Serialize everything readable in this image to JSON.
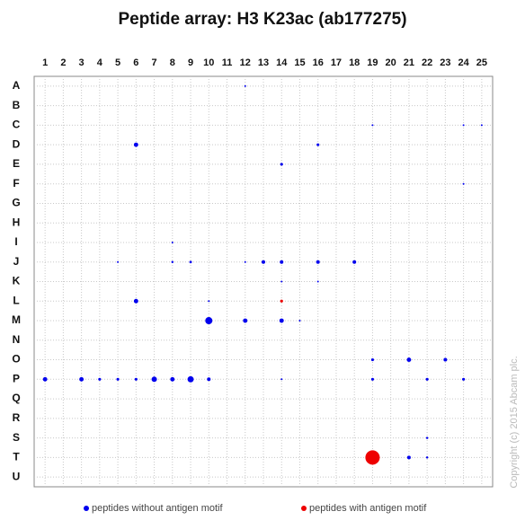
{
  "chart_data": {
    "type": "bubble",
    "title": "Peptide array:  H3 K23ac (ab177275)",
    "xlim": [
      0.4,
      25.6
    ],
    "xticks": [
      1,
      2,
      3,
      4,
      5,
      6,
      7,
      8,
      9,
      10,
      11,
      12,
      13,
      14,
      15,
      16,
      17,
      18,
      19,
      20,
      21,
      22,
      23,
      24,
      25
    ],
    "y_categories": [
      "A",
      "B",
      "C",
      "D",
      "E",
      "F",
      "G",
      "H",
      "I",
      "J",
      "K",
      "L",
      "M",
      "N",
      "O",
      "P",
      "Q",
      "R",
      "S",
      "T",
      "U"
    ],
    "grid": true,
    "series": [
      {
        "name": "peptides without antigen motif",
        "color": "#0000ee",
        "x": [
          12,
          19,
          24,
          25,
          6,
          16,
          14,
          24,
          8,
          5,
          8,
          9,
          12,
          13,
          14,
          16,
          18,
          14,
          16,
          6,
          10,
          10,
          12,
          14,
          15,
          19,
          21,
          23,
          1,
          3,
          4,
          5,
          6,
          7,
          8,
          9,
          10,
          14,
          19,
          22,
          24,
          22,
          21,
          22
        ],
        "y": [
          "A",
          "C",
          "C",
          "C",
          "D",
          "D",
          "E",
          "F",
          "I",
          "J",
          "J",
          "J",
          "J",
          "J",
          "J",
          "J",
          "J",
          "K",
          "K",
          "L",
          "L",
          "M",
          "M",
          "M",
          "M",
          "O",
          "O",
          "O",
          "P",
          "P",
          "P",
          "P",
          "P",
          "P",
          "P",
          "P",
          "P",
          "P",
          "P",
          "P",
          "P",
          "S",
          "T",
          "T"
        ],
        "sizes": [
          1,
          1,
          1,
          1,
          6,
          2.5,
          2.5,
          1,
          1,
          1,
          1.5,
          2,
          1,
          4,
          4,
          4,
          4,
          1,
          1,
          6,
          1,
          16,
          6,
          6,
          1,
          2.5,
          6,
          4,
          6,
          6,
          2.5,
          2.5,
          2.5,
          9,
          6,
          12,
          4,
          1,
          2.5,
          2.5,
          2.5,
          1.5,
          4,
          1.5
        ]
      },
      {
        "name": "peptides with antigen motif",
        "color": "#ee0000",
        "x": [
          14,
          19
        ],
        "y": [
          "L",
          "T"
        ],
        "sizes": [
          2.5,
          64
        ]
      }
    ],
    "copyright": "Copyright (c) 2015 Abcam plc."
  }
}
